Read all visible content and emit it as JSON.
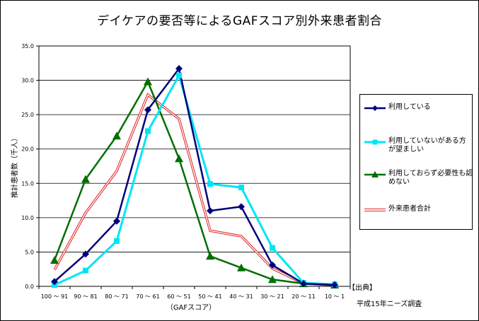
{
  "chart_data": {
    "type": "line",
    "title": "デイケアの要否等によるGAFスコア別外来患者割合",
    "xlabel": "（GAFスコア）",
    "ylabel": "推計患者数（千人）",
    "ylim": [
      0,
      35
    ],
    "yticks": [
      "0.0",
      "5.0",
      "10.0",
      "15.0",
      "20.0",
      "25.0",
      "30.0",
      "35.0"
    ],
    "grid": true,
    "legend_position": "right",
    "categories": [
      "100 ～ 91",
      "90 ～ 81",
      "80 ～ 71",
      "70 ～ 61",
      "60 ～ 51",
      "50 ～ 41",
      "40 ～ 31",
      "30 ～ 21",
      "20 ～ 11",
      "10 ～ 1"
    ],
    "series": [
      {
        "name": "利用している",
        "color": "#00007a",
        "marker": "diamond",
        "values": [
          0.7,
          4.7,
          9.5,
          25.7,
          31.7,
          11.0,
          11.6,
          3.1,
          0.4,
          0.2
        ]
      },
      {
        "name": "利用していないがある方が望ましい",
        "color": "#00e5f5",
        "marker": "square",
        "values": [
          0.2,
          2.3,
          6.6,
          22.6,
          30.7,
          14.9,
          14.4,
          5.6,
          0.5,
          0.3
        ]
      },
      {
        "name": "利用しておらず必要性も認めない",
        "color": "#006e00",
        "marker": "triangle",
        "values": [
          3.8,
          15.6,
          21.9,
          29.8,
          18.6,
          4.4,
          2.7,
          1.0,
          0.4,
          0.2
        ]
      },
      {
        "name": "外来患者合計",
        "color": "#e02020",
        "marker": "none",
        "style": "double",
        "values": [
          2.4,
          10.7,
          16.8,
          27.9,
          24.4,
          8.1,
          7.3,
          2.6,
          0.4,
          0.2
        ]
      }
    ]
  },
  "legend": {
    "items": [
      {
        "line1": "利用している",
        "line2": ""
      },
      {
        "line1": "利用していないがある方",
        "line2": "が望ましい"
      },
      {
        "line1": "利用しておらず必要性も認",
        "line2": "めない"
      },
      {
        "line1": "外来患者合計",
        "line2": ""
      }
    ]
  },
  "source": {
    "label": "【出典】",
    "text": "平成15年ニーズ調査"
  }
}
